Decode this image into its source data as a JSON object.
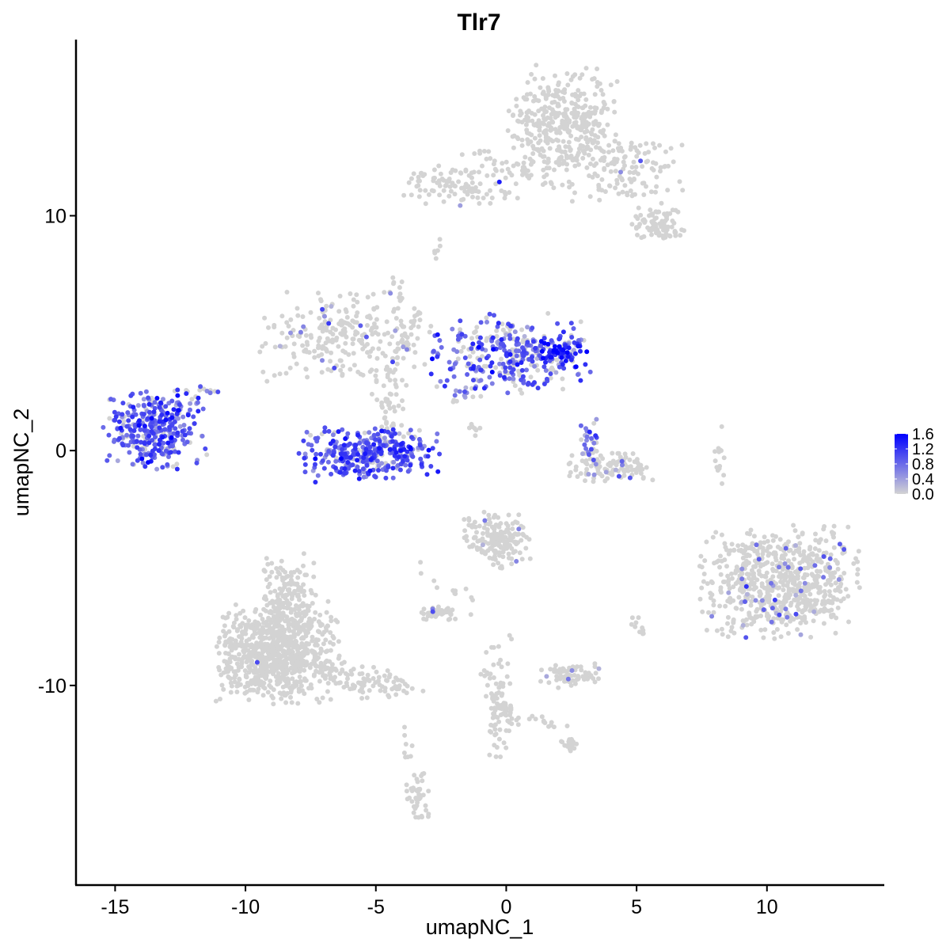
{
  "chart_data": {
    "type": "scatter",
    "title": "Tlr7",
    "xlabel": "umapNC_1",
    "ylabel": "umapNC_2",
    "xlim": [
      -16.5,
      14.5
    ],
    "ylim": [
      -18.5,
      17.5
    ],
    "x_ticks": [
      -15,
      -10,
      -5,
      0,
      5,
      10
    ],
    "x_tick_labels": [
      "-15",
      "-10",
      "-5",
      "0",
      "5",
      "10"
    ],
    "y_ticks": [
      -10,
      0,
      10
    ],
    "y_tick_labels": [
      "-10",
      "0",
      "10"
    ],
    "grid": false,
    "legend_position": "right",
    "colors": {
      "low": "#d3d3d3",
      "high": "#0000ff"
    },
    "color_scale": {
      "min": 0.0,
      "max": 1.6,
      "ticks": [
        0.0,
        0.4,
        0.8,
        1.2,
        1.6
      ],
      "tick_labels": [
        "0.0",
        "0.4",
        "0.8",
        "1.2",
        "1.6"
      ]
    },
    "clusters": [
      {
        "id": "top-cluster",
        "center": [
          2.2,
          14.0
        ],
        "spread": [
          1.0,
          1.1
        ],
        "n": 380,
        "expr_rate": 0.0,
        "expr_mean": 0.0
      },
      {
        "id": "top-right-arm",
        "center": [
          4.6,
          12.0
        ],
        "spread": [
          1.0,
          0.7
        ],
        "n": 120,
        "expr_rate": 0.03,
        "expr_mean": 0.7
      },
      {
        "id": "top-right-tip",
        "center": [
          5.8,
          9.7
        ],
        "spread": [
          0.5,
          0.35
        ],
        "n": 80,
        "expr_rate": 0.02,
        "expr_mean": 0.6
      },
      {
        "id": "top-left-arm",
        "center": [
          -1.8,
          11.3
        ],
        "spread": [
          1.0,
          0.4
        ],
        "n": 110,
        "expr_rate": 0.02,
        "expr_mean": 0.7
      },
      {
        "id": "mid-left-cluster",
        "center": [
          -6.3,
          4.8
        ],
        "spread": [
          1.6,
          0.9
        ],
        "n": 240,
        "expr_rate": 0.03,
        "expr_mean": 0.6
      },
      {
        "id": "mid-left-stem",
        "center": [
          -4.5,
          2.0
        ],
        "spread": [
          0.35,
          1.0
        ],
        "n": 60,
        "expr_rate": 0.0,
        "expr_mean": 0.0
      },
      {
        "id": "crescent",
        "center": [
          -5.2,
          -0.1
        ],
        "spread": [
          1.3,
          0.5
        ],
        "n": 360,
        "expr_rate": 0.85,
        "expr_mean": 0.9
      },
      {
        "id": "center-cluster",
        "center": [
          0.2,
          4.2
        ],
        "spread": [
          1.4,
          0.8
        ],
        "n": 330,
        "expr_rate": 0.7,
        "expr_mean": 0.85
      },
      {
        "id": "center-hot-tip",
        "center": [
          2.1,
          4.2
        ],
        "spread": [
          0.45,
          0.3
        ],
        "n": 70,
        "expr_rate": 0.9,
        "expr_mean": 1.3
      },
      {
        "id": "left-cluster",
        "center": [
          -13.5,
          0.9
        ],
        "spread": [
          0.9,
          0.8
        ],
        "n": 330,
        "expr_rate": 0.85,
        "expr_mean": 0.9
      },
      {
        "id": "small-right",
        "center": [
          4.0,
          -0.7
        ],
        "spread": [
          0.75,
          0.35
        ],
        "n": 110,
        "expr_rate": 0.12,
        "expr_mean": 0.6
      },
      {
        "id": "small-right-stalk",
        "center": [
          3.2,
          0.5
        ],
        "spread": [
          0.2,
          0.45
        ],
        "n": 25,
        "expr_rate": 0.7,
        "expr_mean": 0.8
      },
      {
        "id": "right-large",
        "center": [
          10.5,
          -5.6
        ],
        "spread": [
          1.4,
          1.1
        ],
        "n": 720,
        "expr_rate": 0.07,
        "expr_mean": 0.7
      },
      {
        "id": "bottom-left-large",
        "center": [
          -8.8,
          -8.6
        ],
        "spread": [
          1.1,
          1.0
        ],
        "n": 820,
        "expr_rate": 0.005,
        "expr_mean": 0.6
      },
      {
        "id": "bottom-left-upper",
        "center": [
          -8.4,
          -6.2
        ],
        "spread": [
          0.5,
          0.8
        ],
        "n": 150,
        "expr_rate": 0.0,
        "expr_mean": 0.0
      },
      {
        "id": "mid-lower",
        "center": [
          -0.3,
          -3.8
        ],
        "spread": [
          0.6,
          0.55
        ],
        "n": 180,
        "expr_rate": 0.02,
        "expr_mean": 0.7
      },
      {
        "id": "small-blob-left",
        "center": [
          -2.6,
          -6.9
        ],
        "spread": [
          0.35,
          0.15
        ],
        "n": 45,
        "expr_rate": 0.03,
        "expr_mean": 0.6
      },
      {
        "id": "small-blob-mid",
        "center": [
          2.5,
          -9.6
        ],
        "spread": [
          0.6,
          0.25
        ],
        "n": 70,
        "expr_rate": 0.04,
        "expr_mean": 0.6
      },
      {
        "id": "bottom-stem",
        "center": [
          -0.3,
          -10.9
        ],
        "spread": [
          0.25,
          1.1
        ],
        "n": 70,
        "expr_rate": 0.0,
        "expr_mean": 0.0
      },
      {
        "id": "bottom-small",
        "center": [
          2.4,
          -12.5
        ],
        "spread": [
          0.25,
          0.2
        ],
        "n": 25,
        "expr_rate": 0.0,
        "expr_mean": 0.0
      },
      {
        "id": "bottom-tail",
        "center": [
          -3.4,
          -14.8
        ],
        "spread": [
          0.2,
          0.5
        ],
        "n": 45,
        "expr_rate": 0.0,
        "expr_mean": 0.0
      },
      {
        "id": "right-thin",
        "center": [
          8.2,
          -0.3
        ],
        "spread": [
          0.12,
          0.6
        ],
        "n": 14,
        "expr_rate": 0.05,
        "expr_mean": 0.6
      }
    ],
    "segments": [
      {
        "from": [
          -8.2,
          -9.0
        ],
        "to": [
          -3.8,
          -10.3
        ],
        "width": 0.3,
        "n": 120,
        "expr_rate": 0.0,
        "expr_mean": 0.0
      },
      {
        "from": [
          -3.8,
          4.0
        ],
        "to": [
          -4.3,
          7.5
        ],
        "width": 0.15,
        "n": 25,
        "expr_rate": 0.1,
        "expr_mean": 0.6
      },
      {
        "from": [
          -4.3,
          3.7
        ],
        "to": [
          -3.2,
          6.3
        ],
        "width": 0.15,
        "n": 20,
        "expr_rate": 0.0,
        "expr_mean": 0.0
      },
      {
        "from": [
          -1.5,
          12.9
        ],
        "to": [
          1.9,
          11.2
        ],
        "width": 0.15,
        "n": 35,
        "expr_rate": 0.0,
        "expr_mean": 0.0
      },
      {
        "from": [
          2.1,
          12.7
        ],
        "to": [
          2.6,
          11.0
        ],
        "width": 0.2,
        "n": 15,
        "expr_rate": 0.0,
        "expr_mean": 0.0
      },
      {
        "from": [
          -12.4,
          1.9
        ],
        "to": [
          -11.3,
          2.8
        ],
        "width": 0.2,
        "n": 15,
        "expr_rate": 0.5,
        "expr_mean": 0.7
      },
      {
        "from": [
          -1.2,
          2.7
        ],
        "to": [
          -2.2,
          2.0
        ],
        "width": 0.2,
        "n": 15,
        "expr_rate": 0.6,
        "expr_mean": 0.6
      },
      {
        "from": [
          -1.8,
          1.2
        ],
        "to": [
          -1.0,
          0.8
        ],
        "width": 0.1,
        "n": 8,
        "expr_rate": 0.1,
        "expr_mean": 0.5
      },
      {
        "from": [
          -0.9,
          -9.8
        ],
        "to": [
          0.5,
          -11.8
        ],
        "width": 0.2,
        "n": 25,
        "expr_rate": 0.0,
        "expr_mean": 0.0
      },
      {
        "from": [
          0.8,
          -11.3
        ],
        "to": [
          2.3,
          -12.0
        ],
        "width": 0.12,
        "n": 12,
        "expr_rate": 0.0,
        "expr_mean": 0.0
      },
      {
        "from": [
          -3.9,
          -11.8
        ],
        "to": [
          -3.7,
          -13.3
        ],
        "width": 0.1,
        "n": 8,
        "expr_rate": 0.0,
        "expr_mean": 0.0
      },
      {
        "from": [
          -2.8,
          8.3
        ],
        "to": [
          -2.5,
          8.8
        ],
        "width": 0.08,
        "n": 6,
        "expr_rate": 0.0,
        "expr_mean": 0.0
      },
      {
        "from": [
          -3.0,
          -4.9
        ],
        "to": [
          -1.5,
          -6.5
        ],
        "width": 0.2,
        "n": 12,
        "expr_rate": 0.0,
        "expr_mean": 0.0
      },
      {
        "from": [
          0.3,
          -7.9
        ],
        "to": [
          -0.8,
          -8.6
        ],
        "width": 0.12,
        "n": 6,
        "expr_rate": 0.0,
        "expr_mean": 0.0
      },
      {
        "from": [
          4.9,
          -7.2
        ],
        "to": [
          5.3,
          -7.8
        ],
        "width": 0.15,
        "n": 10,
        "expr_rate": 0.0,
        "expr_mean": 0.0
      }
    ]
  }
}
